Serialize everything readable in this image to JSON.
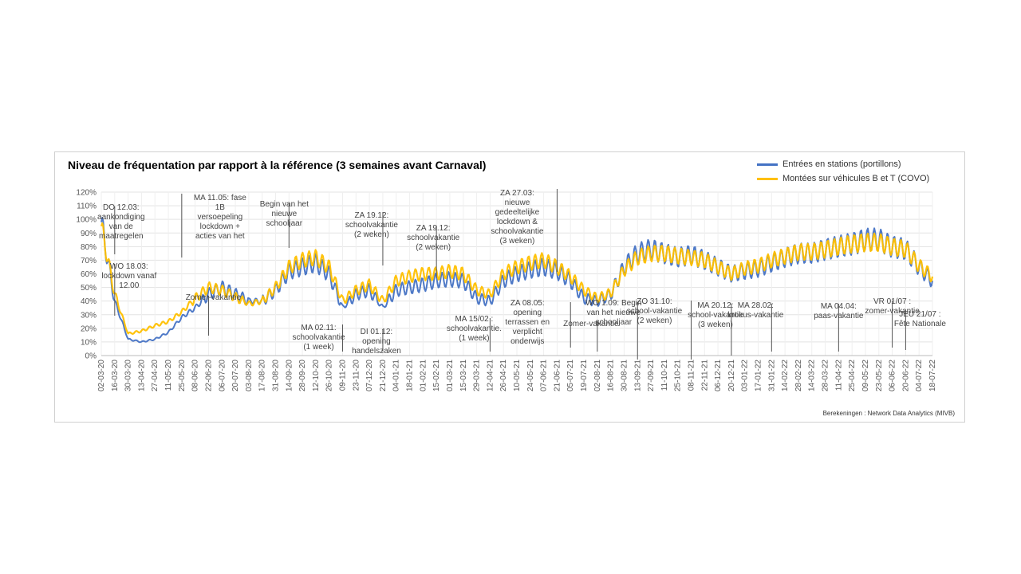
{
  "chart_data": {
    "type": "line",
    "title": "Niveau de fréquentation par rapport à la référence (3 semaines avant Carnaval)",
    "credit": "Berekeningen : Network Data Analytics (MIVB)",
    "legend_position": "top-right",
    "grid": true,
    "ylim": [
      0,
      120
    ],
    "y_ticks": [
      "0%",
      "10%",
      "20%",
      "30%",
      "40%",
      "50%",
      "60%",
      "70%",
      "80%",
      "90%",
      "100%",
      "110%",
      "120%"
    ],
    "x_ticks": [
      "02-03-20",
      "16-03-20",
      "30-03-20",
      "13-04-20",
      "27-04-20",
      "11-05-20",
      "25-05-20",
      "08-06-20",
      "22-06-20",
      "06-07-20",
      "20-07-20",
      "03-08-20",
      "17-08-20",
      "31-08-20",
      "14-09-20",
      "28-09-20",
      "12-10-20",
      "26-10-20",
      "09-11-20",
      "23-11-20",
      "07-12-20",
      "21-12-20",
      "04-01-21",
      "18-01-21",
      "01-02-21",
      "15-02-21",
      "01-03-21",
      "15-03-21",
      "29-03-21",
      "12-04-21",
      "26-04-21",
      "10-05-21",
      "24-05-21",
      "07-06-21",
      "21-06-21",
      "05-07-21",
      "19-07-21",
      "02-08-21",
      "16-08-21",
      "30-08-21",
      "13-09-21",
      "27-09-21",
      "11-10-21",
      "25-10-21",
      "08-11-21",
      "22-11-21",
      "06-12-21",
      "20-12-21",
      "03-01-22",
      "17-01-22",
      "31-01-22",
      "14-02-22",
      "28-02-22",
      "14-03-22",
      "28-03-22",
      "11-04-22",
      "25-04-22",
      "09-05-22",
      "23-05-22",
      "06-06-22",
      "20-06-22",
      "04-07-22",
      "18-07-22"
    ],
    "series": [
      {
        "name": "Entrées en stations (portillons)",
        "color": "#4472c4",
        "values": [
          98,
          40,
          12,
          10,
          12,
          17,
          28,
          35,
          45,
          50,
          45,
          40,
          40,
          48,
          62,
          65,
          68,
          60,
          35,
          45,
          48,
          35,
          48,
          50,
          52,
          55,
          56,
          55,
          42,
          40,
          55,
          60,
          63,
          65,
          62,
          55,
          42,
          40,
          45,
          65,
          75,
          78,
          75,
          72,
          74,
          70,
          65,
          60,
          62,
          64,
          68,
          72,
          75,
          75,
          78,
          80,
          82,
          85,
          85,
          80,
          78,
          65,
          55
        ]
      },
      {
        "name": "Montées sur véhicules B et T (COVO)",
        "color": "#ffc000",
        "values": [
          95,
          45,
          16,
          18,
          22,
          25,
          32,
          42,
          50,
          48,
          43,
          38,
          40,
          50,
          65,
          70,
          72,
          65,
          40,
          48,
          52,
          40,
          55,
          58,
          60,
          60,
          62,
          60,
          48,
          45,
          60,
          65,
          68,
          70,
          65,
          58,
          48,
          42,
          46,
          63,
          72,
          75,
          75,
          73,
          72,
          70,
          65,
          60,
          64,
          66,
          70,
          73,
          76,
          76,
          78,
          80,
          82,
          83,
          83,
          80,
          78,
          66,
          58
        ]
      }
    ],
    "annotations": [
      "DO 12.03: aankondiging van de maatregelen",
      "WO 18.03: lockdown vanaf 12.00",
      "MA 11.05: fase 1B versoepeling lockdown + acties van het",
      "Zomer-vakantie",
      "Begin van het nieuwe schooljaar",
      "MA 02.11: schoolvakantie (1 week)",
      "ZA 19.12: schoolvakantie (2 weken)",
      "DI 01.12: opening handelszaken",
      "ZA 19.12: schoolvakantie (2 weken)",
      "MA 15/02 : schoolvakantie. (1 week)",
      "ZA 27.03: nieuwe gedeeltelijke lockdown & schoolvakantie (3 weken)",
      "ZA 08.05: opening terrassen en verplicht onderwijs",
      "Zomer-vakantie",
      "WO 1.09: Begin van het nieuwe schooljaar",
      "ZO 31.10: school-vakantie (2 weken)",
      "MA 20.12: school-vakantie (3 weken)",
      "MA 28.02: krokus-vakantie",
      "MA 04.04: paas-vakantie",
      "VR 01/07 : zomer-vakantie",
      "JEU 21/07 : Fête Nationale"
    ]
  }
}
